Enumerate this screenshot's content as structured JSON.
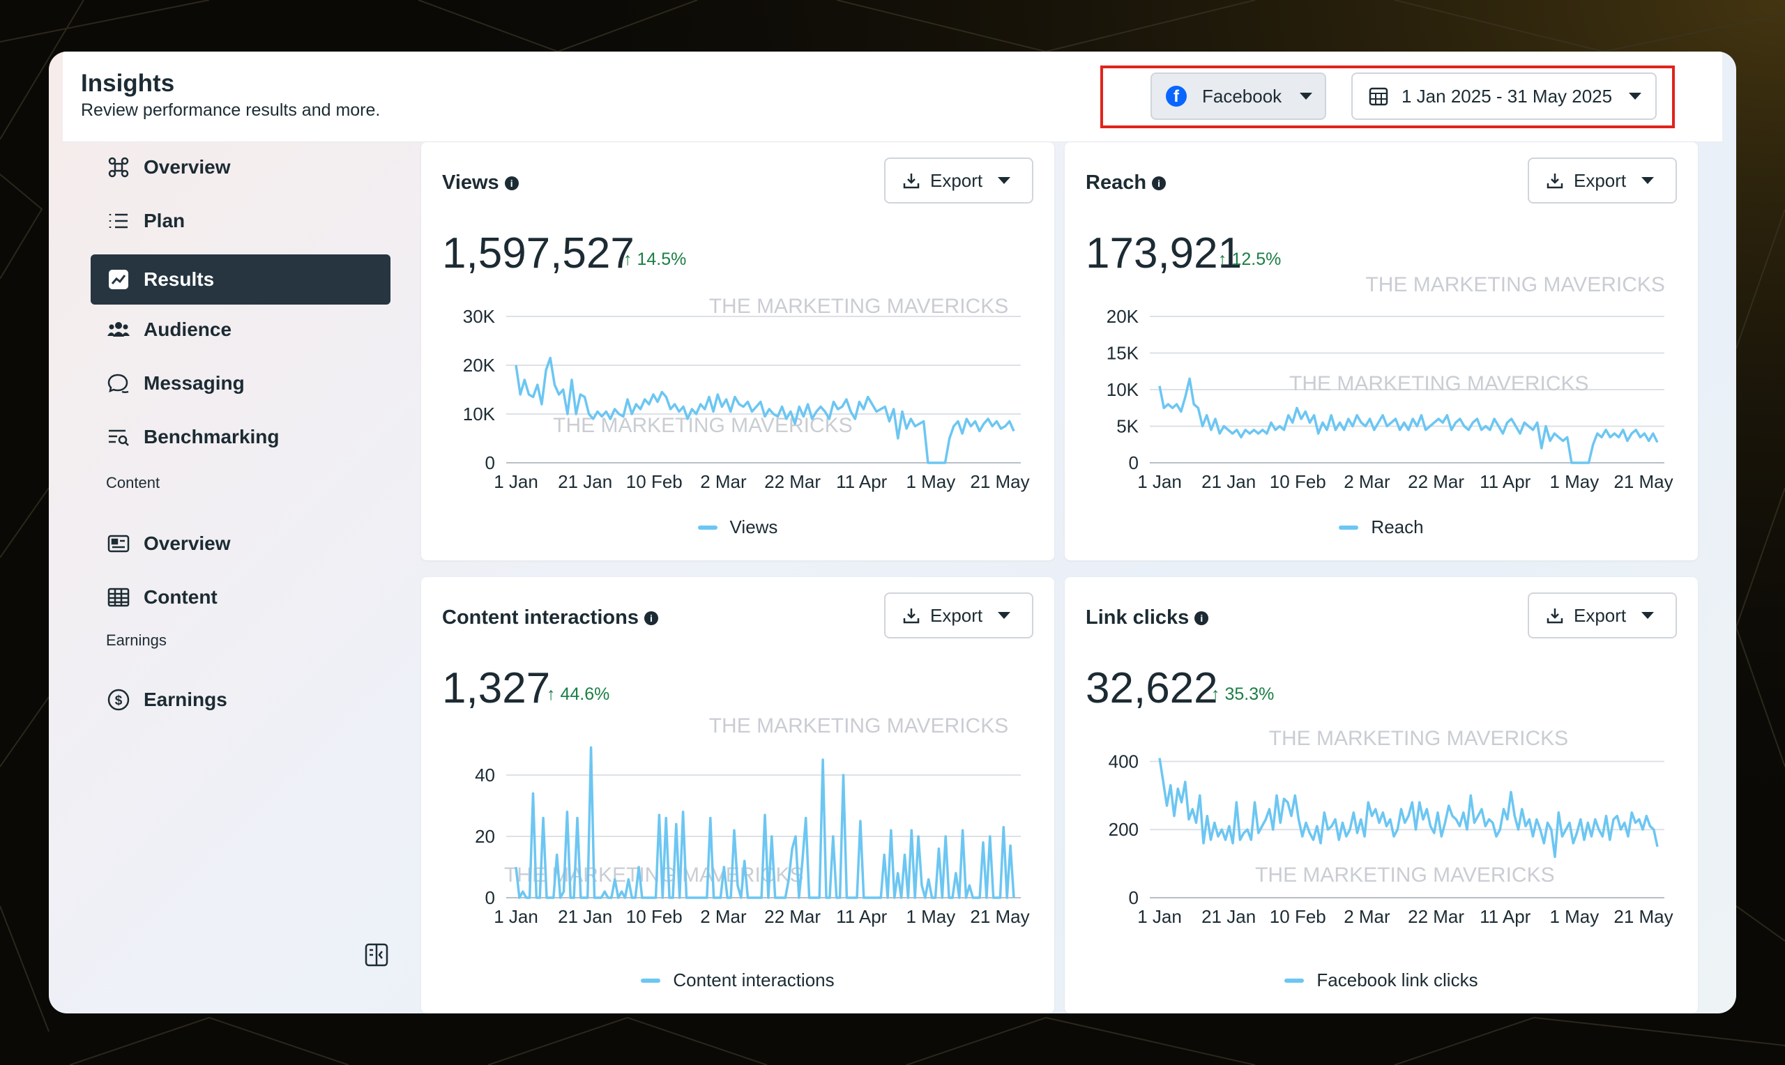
{
  "header": {
    "title": "Insights",
    "subtitle": "Review performance results and more.",
    "platform": "Facebook",
    "date_range": "1 Jan 2025 - 31 May 2025"
  },
  "sidebar": {
    "items": [
      {
        "label": "Overview",
        "icon": "overview-icon"
      },
      {
        "label": "Plan",
        "icon": "plan-list-icon"
      },
      {
        "label": "Results",
        "icon": "results-trend-icon",
        "active": true
      },
      {
        "label": "Audience",
        "icon": "audience-icon"
      },
      {
        "label": "Messaging",
        "icon": "messaging-icon"
      },
      {
        "label": "Benchmarking",
        "icon": "benchmarking-icon"
      }
    ],
    "content_section": "Content",
    "content_items": [
      {
        "label": "Overview",
        "icon": "content-overview-icon"
      },
      {
        "label": "Content",
        "icon": "content-table-icon"
      }
    ],
    "earnings_section": "Earnings",
    "earnings_items": [
      {
        "label": "Earnings",
        "icon": "dollar-icon"
      }
    ]
  },
  "watermark": "THE MARKETING MAVERICKS",
  "export_label": "Export",
  "colors": {
    "line": "#6cc6f2",
    "active_nav": "#263540",
    "positive": "#1a7f44",
    "highlight": "#e0241b"
  },
  "chart_data": [
    {
      "type": "line",
      "title": "Views",
      "total": "1,597,527",
      "change": "14.5%",
      "legend": "Views",
      "x_ticks": [
        "1 Jan",
        "21 Jan",
        "10 Feb",
        "2 Mar",
        "22 Mar",
        "11 Apr",
        "1 May",
        "21 May"
      ],
      "y_ticks": [
        "0",
        "10K",
        "20K",
        "30K"
      ],
      "ylim": [
        0,
        30000
      ],
      "values": [
        20000,
        14000,
        17000,
        14000,
        13500,
        16000,
        12000,
        19000,
        21500,
        16000,
        14000,
        15000,
        10000,
        17000,
        10000,
        14000,
        13500,
        10000,
        9000,
        10500,
        9500,
        10500,
        9000,
        11000,
        10000,
        9500,
        13000,
        10000,
        12000,
        11000,
        13000,
        12000,
        14000,
        12500,
        14500,
        13500,
        11000,
        12000,
        10500,
        11500,
        9000,
        11000,
        10000,
        12000,
        11000,
        13500,
        10500,
        14000,
        11500,
        13000,
        10500,
        13500,
        12000,
        11500,
        12500,
        10500,
        11500,
        12500,
        9500,
        11000,
        10000,
        9500,
        11500,
        9000,
        10500,
        8000,
        11500,
        9500,
        12000,
        9000,
        10500,
        11500,
        10500,
        9000,
        12500,
        11000,
        11500,
        13000,
        10500,
        9000,
        12500,
        11000,
        13500,
        12000,
        10500,
        11000,
        11500,
        8500,
        11000,
        5000,
        10500,
        7000,
        9000,
        7500,
        8000,
        8500,
        0,
        0,
        0,
        0,
        0,
        5000,
        7500,
        8500,
        6000,
        9000,
        7500,
        8500,
        6500,
        8000,
        9000,
        7500,
        8500,
        7000,
        7500,
        8500,
        6500
      ],
      "watermarks": [
        [
          623,
          275
        ],
        [
          486,
          380
        ]
      ]
    },
    {
      "type": "line",
      "title": "Reach",
      "total": "173,921",
      "change": "12.5%",
      "legend": "Reach",
      "x_ticks": [
        "1 Jan",
        "21 Jan",
        "10 Feb",
        "2 Mar",
        "22 Mar",
        "11 Apr",
        "1 May",
        "21 May"
      ],
      "y_ticks": [
        "0",
        "5K",
        "10K",
        "15K",
        "20K"
      ],
      "ylim": [
        0,
        20000
      ],
      "values": [
        10500,
        7500,
        8000,
        7500,
        8000,
        7000,
        9000,
        11500,
        8000,
        7500,
        5000,
        6500,
        4500,
        6000,
        4000,
        5000,
        4500,
        4000,
        4500,
        3500,
        4500,
        4000,
        4500,
        4000,
        4500,
        4000,
        5500,
        4500,
        5000,
        4500,
        6500,
        5500,
        7500,
        6000,
        7000,
        5500,
        6500,
        4000,
        5500,
        4500,
        6500,
        4500,
        5500,
        4500,
        6000,
        5000,
        6500,
        5500,
        5000,
        6000,
        4500,
        5500,
        6500,
        5000,
        5500,
        6000,
        4500,
        5500,
        4500,
        6000,
        5000,
        6500,
        4500,
        5000,
        5500,
        6000,
        5500,
        6500,
        4500,
        5500,
        6000,
        5000,
        4500,
        5500,
        6000,
        4500,
        5000,
        4500,
        6000,
        5000,
        4000,
        5500,
        6000,
        5000,
        4000,
        5500,
        5000,
        4500,
        5500,
        2000,
        5000,
        3000,
        4000,
        3500,
        3000,
        3500,
        0,
        0,
        0,
        0,
        0,
        2500,
        4000,
        3500,
        4500,
        3500,
        4000,
        3500,
        4500,
        3000,
        4000,
        4500,
        3500,
        4000,
        3000,
        4000,
        2800
      ],
      "watermarks": [
        [
          1200,
          256
        ],
        [
          1133,
          343
        ]
      ]
    },
    {
      "type": "line",
      "title": "Content interactions",
      "total": "1,327",
      "change": "44.6%",
      "legend": "Content interactions",
      "x_ticks": [
        "1 Jan",
        "21 Jan",
        "10 Feb",
        "2 Mar",
        "22 Mar",
        "11 Apr",
        "1 May",
        "21 May"
      ],
      "y_ticks": [
        "0",
        "20",
        "40"
      ],
      "ylim": [
        0,
        50
      ],
      "values": [
        10,
        0,
        2,
        0,
        0,
        34,
        0,
        0,
        26,
        0,
        0,
        0,
        14,
        0,
        2,
        28,
        0,
        0,
        26,
        0,
        0,
        0,
        49,
        0,
        0,
        0,
        2,
        0,
        0,
        6,
        0,
        2,
        0,
        6,
        0,
        0,
        10,
        0,
        0,
        0,
        0,
        0,
        27,
        0,
        26,
        0,
        0,
        24,
        0,
        28,
        0,
        0,
        0,
        0,
        0,
        0,
        0,
        26,
        0,
        0,
        0,
        10,
        0,
        0,
        22,
        4,
        0,
        12,
        0,
        0,
        0,
        0,
        0,
        27,
        0,
        20,
        0,
        0,
        0,
        0,
        6,
        16,
        20,
        0,
        12,
        26,
        0,
        0,
        0,
        0,
        45,
        0,
        0,
        20,
        0,
        0,
        40,
        0,
        0,
        0,
        0,
        25,
        0,
        0,
        0,
        0,
        0,
        0,
        14,
        0,
        22,
        0,
        8,
        0,
        14,
        0,
        22,
        0,
        20,
        4,
        0,
        6,
        0,
        0,
        16,
        0,
        20,
        0,
        0,
        8,
        0,
        22,
        0,
        4,
        0,
        0,
        0,
        18,
        0,
        20,
        0,
        0,
        0,
        23,
        0,
        17,
        0
      ],
      "watermarks": [
        [
          623,
          644
        ],
        [
          443,
          775
        ]
      ]
    },
    {
      "type": "line",
      "title": "Link clicks",
      "total": "32,622",
      "change": "35.3%",
      "legend": "Facebook link clicks",
      "x_ticks": [
        "1 Jan",
        "21 Jan",
        "10 Feb",
        "2 Mar",
        "22 Mar",
        "11 Apr",
        "1 May",
        "21 May"
      ],
      "y_ticks": [
        "0",
        "200",
        "400"
      ],
      "ylim": [
        0,
        450
      ],
      "values": [
        410,
        340,
        270,
        330,
        240,
        320,
        280,
        340,
        230,
        260,
        220,
        300,
        160,
        240,
        170,
        220,
        180,
        200,
        170,
        210,
        160,
        280,
        170,
        190,
        200,
        170,
        280,
        190,
        210,
        230,
        260,
        200,
        300,
        220,
        290,
        280,
        240,
        300,
        230,
        180,
        220,
        190,
        170,
        210,
        160,
        250,
        200,
        210,
        230,
        170,
        220,
        180,
        200,
        250,
        190,
        230,
        180,
        280,
        240,
        260,
        220,
        250,
        210,
        230,
        180,
        200,
        260,
        220,
        240,
        280,
        200,
        280,
        230,
        260,
        210,
        190,
        250,
        180,
        220,
        270,
        240,
        230,
        210,
        250,
        200,
        300,
        220,
        240,
        260,
        210,
        230,
        220,
        180,
        200,
        260,
        230,
        310,
        240,
        200,
        260,
        210,
        230,
        180,
        230,
        200,
        160,
        220,
        200,
        120,
        250,
        180,
        200,
        220,
        160,
        190,
        230,
        170,
        220,
        180,
        230,
        200,
        180,
        240,
        170,
        230,
        240,
        200,
        220,
        180,
        250,
        220,
        230,
        200,
        240,
        210,
        200,
        150
      ],
      "watermarks": [
        [
          1115,
          655
        ],
        [
          1103,
          775
        ]
      ]
    }
  ]
}
